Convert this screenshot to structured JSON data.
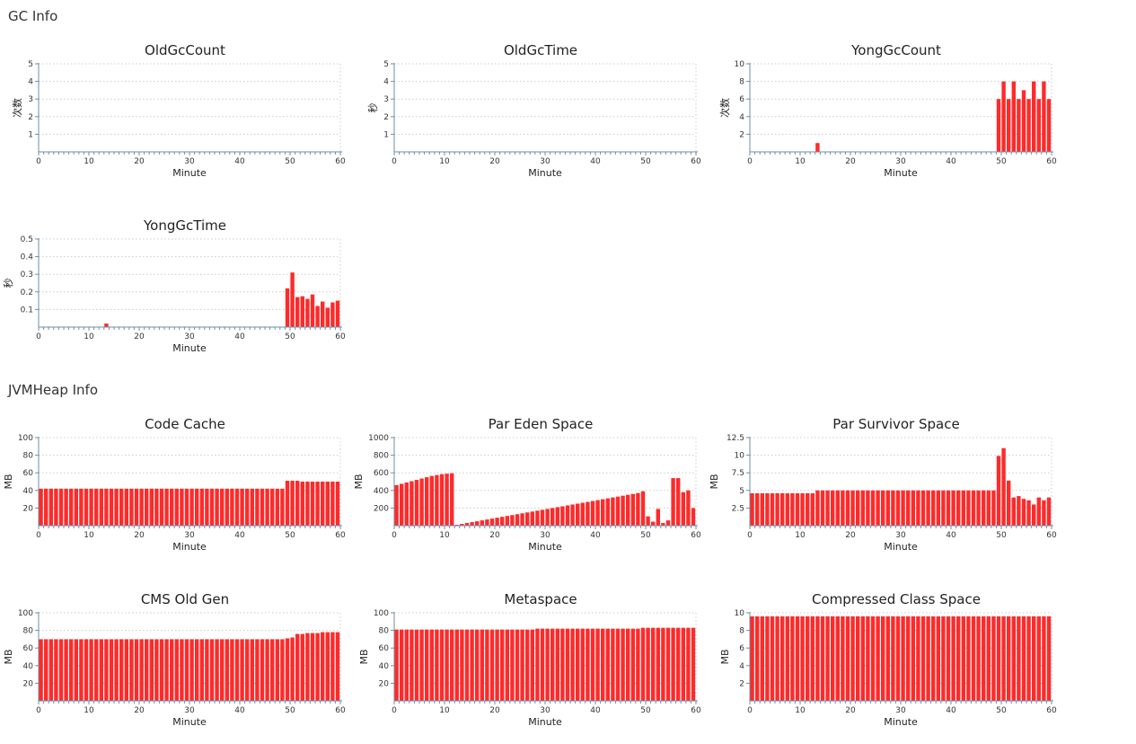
{
  "sections": {
    "gc": "GC Info",
    "heap": "JVMHeap Info"
  },
  "colors": {
    "bar": "#ff2a2a",
    "axis": "#6e8fa8",
    "grid": "#cccccc"
  },
  "chart_data": [
    {
      "id": "old-gc-count",
      "type": "bar",
      "title": "OldGcCount",
      "xlabel": "Minute",
      "ylabel": "次数",
      "xlim": [
        0,
        60
      ],
      "xticks": [
        0,
        10,
        20,
        30,
        40,
        50,
        60
      ],
      "ylim": [
        0,
        5
      ],
      "yticks": [
        1,
        2,
        3,
        4,
        5
      ],
      "ytick_labels": [
        "1",
        "2",
        "3",
        "4",
        "5"
      ],
      "grid": true,
      "series": [
        {
          "x": [],
          "values": []
        }
      ]
    },
    {
      "id": "old-gc-time",
      "type": "bar",
      "title": "OldGcTime",
      "xlabel": "Minute",
      "ylabel": "秒",
      "xlim": [
        0,
        60
      ],
      "xticks": [
        0,
        10,
        20,
        30,
        40,
        50,
        60
      ],
      "ylim": [
        0,
        5
      ],
      "yticks": [
        1,
        2,
        3,
        4,
        5
      ],
      "ytick_labels": [
        "1",
        "2",
        "3",
        "4",
        "5"
      ],
      "grid": true,
      "series": [
        {
          "x": [],
          "values": []
        }
      ]
    },
    {
      "id": "yong-gc-count",
      "type": "bar",
      "title": "YongGcCount",
      "xlabel": "Minute",
      "ylabel": "次数",
      "xlim": [
        0,
        60
      ],
      "xticks": [
        0,
        10,
        20,
        30,
        40,
        50,
        60
      ],
      "ylim": [
        0,
        10
      ],
      "yticks": [
        2,
        4,
        6,
        8,
        10
      ],
      "ytick_labels": [
        "2",
        "4",
        "6",
        "8",
        "10"
      ],
      "grid": true,
      "series": [
        {
          "x": [
            13,
            49,
            50,
            51,
            52,
            53,
            54,
            55,
            56,
            57,
            58,
            59
          ],
          "values": [
            1,
            6,
            8,
            6,
            8,
            6,
            7,
            6,
            8,
            6,
            8,
            6
          ]
        }
      ]
    },
    {
      "id": "yong-gc-time",
      "type": "bar",
      "title": "YongGcTime",
      "xlabel": "Minute",
      "ylabel": "秒",
      "xlim": [
        0,
        60
      ],
      "xticks": [
        0,
        10,
        20,
        30,
        40,
        50,
        60
      ],
      "ylim": [
        0,
        0.5
      ],
      "yticks": [
        0.1,
        0.2,
        0.3,
        0.4,
        0.5
      ],
      "ytick_labels": [
        "0.1",
        "0.2",
        "0.3",
        "0.4",
        "0.5"
      ],
      "grid": true,
      "series": [
        {
          "x": [
            13,
            49,
            50,
            51,
            52,
            53,
            54,
            55,
            56,
            57,
            58,
            59
          ],
          "values": [
            0.02,
            0.22,
            0.31,
            0.17,
            0.175,
            0.16,
            0.185,
            0.12,
            0.145,
            0.11,
            0.14,
            0.15
          ]
        }
      ]
    },
    {
      "id": "code-cache",
      "type": "bar",
      "title": "Code Cache",
      "xlabel": "Minute",
      "ylabel": "MB",
      "xlim": [
        0,
        60
      ],
      "xticks": [
        0,
        10,
        20,
        30,
        40,
        50,
        60
      ],
      "ylim": [
        0,
        100
      ],
      "yticks": [
        20,
        40,
        60,
        80,
        100
      ],
      "ytick_labels": [
        "20",
        "40",
        "60",
        "80",
        "100"
      ],
      "grid": true,
      "series": [
        {
          "x": [
            0,
            1,
            2,
            3,
            4,
            5,
            6,
            7,
            8,
            9,
            10,
            11,
            12,
            13,
            14,
            15,
            16,
            17,
            18,
            19,
            20,
            21,
            22,
            23,
            24,
            25,
            26,
            27,
            28,
            29,
            30,
            31,
            32,
            33,
            34,
            35,
            36,
            37,
            38,
            39,
            40,
            41,
            42,
            43,
            44,
            45,
            46,
            47,
            48,
            49,
            50,
            51,
            52,
            53,
            54,
            55,
            56,
            57,
            58,
            59
          ],
          "values": [
            42,
            42,
            42,
            42,
            42,
            42,
            42,
            42,
            42,
            42,
            42,
            42,
            42,
            42,
            42,
            42,
            42,
            42,
            42,
            42,
            42,
            42,
            42,
            42,
            42,
            42,
            42,
            42,
            42,
            42,
            42,
            42,
            42,
            42,
            42,
            42,
            42,
            42,
            42,
            42,
            42,
            42,
            42,
            42,
            42,
            42,
            42,
            42,
            42,
            51,
            51,
            51,
            50,
            50,
            50,
            50,
            50,
            50,
            50,
            50
          ]
        }
      ]
    },
    {
      "id": "par-eden-space",
      "type": "bar",
      "title": "Par Eden Space",
      "xlabel": "Minute",
      "ylabel": "MB",
      "xlim": [
        0,
        60
      ],
      "xticks": [
        0,
        10,
        20,
        30,
        40,
        50,
        60
      ],
      "ylim": [
        0,
        1000
      ],
      "yticks": [
        200,
        400,
        600,
        800,
        1000
      ],
      "ytick_labels": [
        "200",
        "400",
        "600",
        "800",
        "1000"
      ],
      "grid": true,
      "series": [
        {
          "x": [
            0,
            1,
            2,
            3,
            4,
            5,
            6,
            7,
            8,
            9,
            10,
            11,
            12,
            13,
            14,
            15,
            16,
            17,
            18,
            19,
            20,
            21,
            22,
            23,
            24,
            25,
            26,
            27,
            28,
            29,
            30,
            31,
            32,
            33,
            34,
            35,
            36,
            37,
            38,
            39,
            40,
            41,
            42,
            43,
            44,
            45,
            46,
            47,
            48,
            49,
            50,
            51,
            52,
            53,
            54,
            55,
            56,
            57,
            58,
            59
          ],
          "values": [
            460,
            475,
            490,
            505,
            520,
            535,
            550,
            565,
            575,
            585,
            590,
            595,
            10,
            20,
            30,
            40,
            50,
            60,
            70,
            80,
            90,
            100,
            110,
            120,
            130,
            140,
            150,
            160,
            170,
            180,
            190,
            200,
            210,
            220,
            230,
            240,
            250,
            260,
            270,
            280,
            290,
            300,
            310,
            320,
            330,
            340,
            350,
            360,
            370,
            390,
            105,
            45,
            190,
            30,
            60,
            540,
            540,
            380,
            400,
            200
          ]
        }
      ]
    },
    {
      "id": "par-survivor-space",
      "type": "bar",
      "title": "Par Survivor Space",
      "xlabel": "Minute",
      "ylabel": "MB",
      "xlim": [
        0,
        60
      ],
      "xticks": [
        0,
        10,
        20,
        30,
        40,
        50,
        60
      ],
      "ylim": [
        0,
        12.5
      ],
      "yticks": [
        2.5,
        5,
        7.5,
        10,
        12.5
      ],
      "ytick_labels": [
        "2.5",
        "5",
        "7.5",
        "10",
        "12.5"
      ],
      "grid": true,
      "series": [
        {
          "x": [
            0,
            1,
            2,
            3,
            4,
            5,
            6,
            7,
            8,
            9,
            10,
            11,
            12,
            13,
            14,
            15,
            16,
            17,
            18,
            19,
            20,
            21,
            22,
            23,
            24,
            25,
            26,
            27,
            28,
            29,
            30,
            31,
            32,
            33,
            34,
            35,
            36,
            37,
            38,
            39,
            40,
            41,
            42,
            43,
            44,
            45,
            46,
            47,
            48,
            49,
            50,
            51,
            52,
            53,
            54,
            55,
            56,
            57,
            58,
            59
          ],
          "values": [
            4.6,
            4.6,
            4.6,
            4.6,
            4.6,
            4.6,
            4.6,
            4.6,
            4.6,
            4.6,
            4.6,
            4.6,
            4.6,
            5.0,
            5.0,
            5.0,
            5.0,
            5.0,
            5.0,
            5.0,
            5.0,
            5.0,
            5.0,
            5.0,
            5.0,
            5.0,
            5.0,
            5.0,
            5.0,
            5.0,
            5.0,
            5.0,
            5.0,
            5.0,
            5.0,
            5.0,
            5.0,
            5.0,
            5.0,
            5.0,
            5.0,
            5.0,
            5.0,
            5.0,
            5.0,
            5.0,
            5.0,
            5.0,
            5.0,
            9.9,
            11.0,
            6.4,
            4.0,
            4.2,
            3.8,
            3.6,
            3.0,
            4.0,
            3.6,
            4.0
          ]
        }
      ]
    },
    {
      "id": "cms-old-gen",
      "type": "bar",
      "title": "CMS Old Gen",
      "xlabel": "Minute",
      "ylabel": "MB",
      "xlim": [
        0,
        60
      ],
      "xticks": [
        0,
        10,
        20,
        30,
        40,
        50,
        60
      ],
      "ylim": [
        0,
        100
      ],
      "yticks": [
        20,
        40,
        60,
        80,
        100
      ],
      "ytick_labels": [
        "20",
        "40",
        "60",
        "80",
        "100"
      ],
      "grid": true,
      "series": [
        {
          "x": [
            0,
            1,
            2,
            3,
            4,
            5,
            6,
            7,
            8,
            9,
            10,
            11,
            12,
            13,
            14,
            15,
            16,
            17,
            18,
            19,
            20,
            21,
            22,
            23,
            24,
            25,
            26,
            27,
            28,
            29,
            30,
            31,
            32,
            33,
            34,
            35,
            36,
            37,
            38,
            39,
            40,
            41,
            42,
            43,
            44,
            45,
            46,
            47,
            48,
            49,
            50,
            51,
            52,
            53,
            54,
            55,
            56,
            57,
            58,
            59
          ],
          "values": [
            70,
            70,
            70,
            70,
            70,
            70,
            70,
            70,
            70,
            70,
            70,
            70,
            70,
            70,
            70,
            70,
            70,
            70,
            70,
            70,
            70,
            70,
            70,
            70,
            70,
            70,
            70,
            70,
            70,
            70,
            70,
            70,
            70,
            70,
            70,
            70,
            70,
            70,
            70,
            70,
            70,
            70,
            70,
            70,
            70,
            70,
            70,
            70,
            70,
            71,
            72,
            76,
            76,
            77,
            77,
            77,
            78,
            78,
            78,
            78
          ]
        }
      ]
    },
    {
      "id": "metaspace",
      "type": "bar",
      "title": "Metaspace",
      "xlabel": "Minute",
      "ylabel": "MB",
      "xlim": [
        0,
        60
      ],
      "xticks": [
        0,
        10,
        20,
        30,
        40,
        50,
        60
      ],
      "ylim": [
        0,
        100
      ],
      "yticks": [
        20,
        40,
        60,
        80,
        100
      ],
      "ytick_labels": [
        "20",
        "40",
        "60",
        "80",
        "100"
      ],
      "grid": true,
      "series": [
        {
          "x": [
            0,
            1,
            2,
            3,
            4,
            5,
            6,
            7,
            8,
            9,
            10,
            11,
            12,
            13,
            14,
            15,
            16,
            17,
            18,
            19,
            20,
            21,
            22,
            23,
            24,
            25,
            26,
            27,
            28,
            29,
            30,
            31,
            32,
            33,
            34,
            35,
            36,
            37,
            38,
            39,
            40,
            41,
            42,
            43,
            44,
            45,
            46,
            47,
            48,
            49,
            50,
            51,
            52,
            53,
            54,
            55,
            56,
            57,
            58,
            59
          ],
          "values": [
            81,
            81,
            81,
            81,
            81,
            81,
            81,
            81,
            81,
            81,
            81,
            81,
            81,
            81,
            81,
            81,
            81,
            81,
            81,
            81,
            81,
            81,
            81,
            81,
            81,
            81,
            81,
            81,
            82,
            82,
            82,
            82,
            82,
            82,
            82,
            82,
            82,
            82,
            82,
            82,
            82,
            82,
            82,
            82,
            82,
            82,
            82,
            82,
            82,
            83,
            83,
            83,
            83,
            83,
            83,
            83,
            83,
            83,
            83,
            83
          ]
        }
      ]
    },
    {
      "id": "compressed-class-space",
      "type": "bar",
      "title": "Compressed Class Space",
      "xlabel": "Minute",
      "ylabel": "MB",
      "xlim": [
        0,
        60
      ],
      "xticks": [
        0,
        10,
        20,
        30,
        40,
        50,
        60
      ],
      "ylim": [
        0,
        10
      ],
      "yticks": [
        2,
        4,
        6,
        8,
        10
      ],
      "ytick_labels": [
        "2",
        "4",
        "6",
        "8",
        "10"
      ],
      "grid": true,
      "series": [
        {
          "x": [
            0,
            1,
            2,
            3,
            4,
            5,
            6,
            7,
            8,
            9,
            10,
            11,
            12,
            13,
            14,
            15,
            16,
            17,
            18,
            19,
            20,
            21,
            22,
            23,
            24,
            25,
            26,
            27,
            28,
            29,
            30,
            31,
            32,
            33,
            34,
            35,
            36,
            37,
            38,
            39,
            40,
            41,
            42,
            43,
            44,
            45,
            46,
            47,
            48,
            49,
            50,
            51,
            52,
            53,
            54,
            55,
            56,
            57,
            58,
            59
          ],
          "values": [
            9.6,
            9.6,
            9.6,
            9.6,
            9.6,
            9.6,
            9.6,
            9.6,
            9.6,
            9.6,
            9.6,
            9.6,
            9.6,
            9.6,
            9.6,
            9.6,
            9.6,
            9.6,
            9.6,
            9.6,
            9.6,
            9.6,
            9.6,
            9.6,
            9.6,
            9.6,
            9.6,
            9.6,
            9.6,
            9.6,
            9.6,
            9.6,
            9.6,
            9.6,
            9.6,
            9.6,
            9.6,
            9.6,
            9.6,
            9.6,
            9.6,
            9.6,
            9.6,
            9.6,
            9.6,
            9.6,
            9.6,
            9.6,
            9.6,
            9.6,
            9.6,
            9.6,
            9.6,
            9.6,
            9.6,
            9.6,
            9.6,
            9.6,
            9.6,
            9.6
          ]
        }
      ]
    }
  ]
}
